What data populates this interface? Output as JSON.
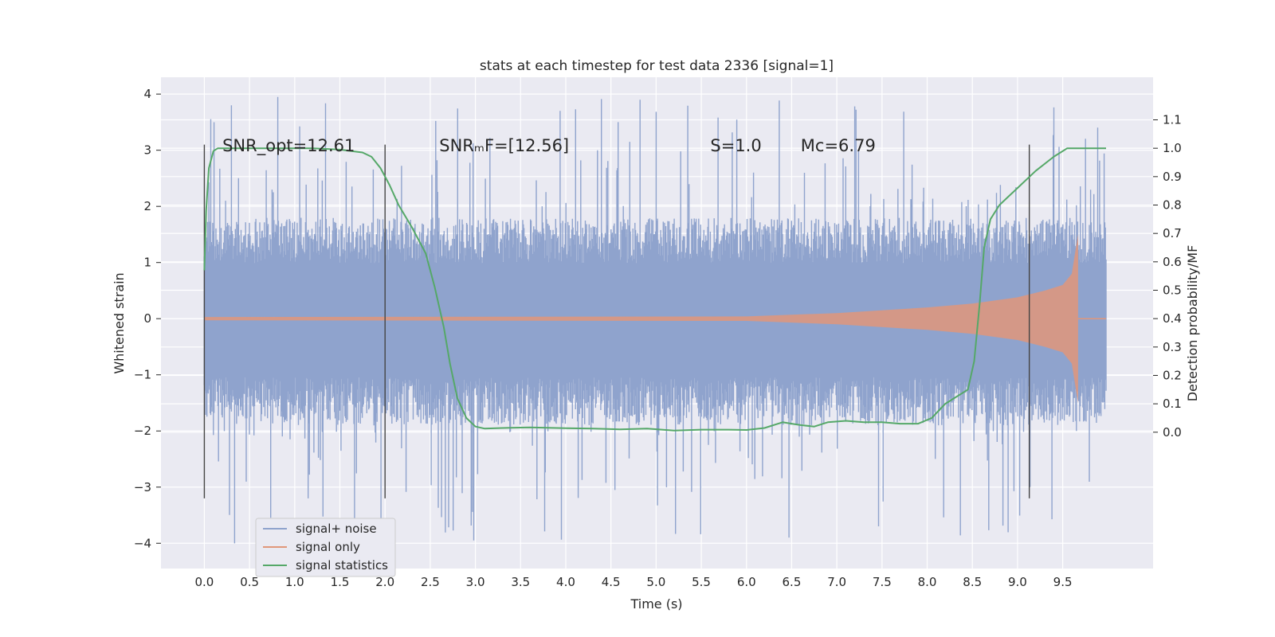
{
  "chart_data": {
    "type": "line",
    "title": "stats at each timestep for test data 2336 [signal=1]",
    "xlabel": "Time (s)",
    "ylabel": "Whitened strain",
    "ylabel_right": "Detection probability/MF",
    "xlim": [
      -0.48,
      10.5
    ],
    "ylim": [
      -4.45,
      4.3
    ],
    "ylim_right": [
      -0.48,
      1.25
    ],
    "xticks": [
      "0.0",
      "0.5",
      "1.0",
      "1.5",
      "2.0",
      "2.5",
      "3.0",
      "3.5",
      "4.0",
      "4.5",
      "5.0",
      "5.5",
      "6.0",
      "6.5",
      "7.0",
      "7.5",
      "8.0",
      "8.5",
      "9.0",
      "9.5"
    ],
    "yticks": [
      "−4",
      "−3",
      "−2",
      "−1",
      "0",
      "1",
      "2",
      "3",
      "4"
    ],
    "yticks_right": [
      "0.0",
      "0.1",
      "0.2",
      "0.3",
      "0.4",
      "0.5",
      "0.6",
      "0.7",
      "0.8",
      "0.9",
      "1.0",
      "1.1"
    ],
    "grid": true,
    "legend_position": "lower-left",
    "colors": {
      "noise": "#8fa3cd",
      "signal": "#e0977a",
      "stats": "#55a868",
      "marker": "#444444",
      "plot_bg": "#eaeaf2",
      "grid": "#ffffff"
    },
    "annotations": [
      {
        "text": "SNR_opt=12.61",
        "x": 0.2
      },
      {
        "text": "SNRₘF=[12.56]",
        "x": 2.6
      },
      {
        "text": "S=1.0",
        "x": 5.6
      },
      {
        "text": "Mc=6.79",
        "x": 6.6
      }
    ],
    "markers_x": [
      0.0,
      2.0,
      9.13
    ],
    "marker_range": [
      -3.2,
      3.1
    ],
    "noise_envelope": {
      "x": [
        0.0,
        9.98
      ],
      "typical_high": 1.8,
      "typical_low": -1.9,
      "spike_max": 3.95,
      "spike_min": -4.05
    },
    "series": [
      {
        "name": "signal+ noise",
        "note": "whitened strain noise, dense trace"
      },
      {
        "name": "signal only",
        "chirp": {
          "x": [
            0.0,
            6.0,
            7.0,
            8.0,
            8.5,
            9.0,
            9.3,
            9.5,
            9.6,
            9.65,
            9.67
          ],
          "amplitude": [
            0.03,
            0.04,
            0.1,
            0.2,
            0.27,
            0.38,
            0.5,
            0.6,
            0.8,
            1.3,
            1.5
          ],
          "merger_x": 9.67,
          "end_x": 9.98
        }
      },
      {
        "name": "signal statistics",
        "axis": "right",
        "x": [
          0.0,
          0.02,
          0.05,
          0.1,
          0.15,
          0.3,
          0.6,
          0.9,
          1.2,
          1.5,
          1.75,
          1.85,
          1.95,
          2.05,
          2.15,
          2.3,
          2.45,
          2.55,
          2.65,
          2.72,
          2.8,
          2.9,
          3.0,
          3.1,
          3.3,
          3.6,
          4.0,
          4.3,
          4.6,
          4.9,
          5.2,
          5.5,
          5.8,
          6.0,
          6.2,
          6.4,
          6.5,
          6.6,
          6.75,
          6.9,
          7.1,
          7.3,
          7.5,
          7.7,
          7.9,
          8.05,
          8.2,
          8.3,
          8.45,
          8.52,
          8.58,
          8.63,
          8.7,
          8.8,
          9.0,
          9.2,
          9.4,
          9.55,
          9.7,
          9.85,
          9.98
        ],
        "values": [
          0.57,
          0.78,
          0.93,
          0.99,
          1.0,
          1.0,
          1.0,
          1.0,
          1.0,
          0.995,
          0.985,
          0.97,
          0.93,
          0.87,
          0.8,
          0.72,
          0.63,
          0.51,
          0.37,
          0.24,
          0.12,
          0.05,
          0.02,
          0.013,
          0.015,
          0.017,
          0.014,
          0.013,
          0.01,
          0.013,
          0.006,
          0.009,
          0.009,
          0.008,
          0.015,
          0.035,
          0.03,
          0.025,
          0.02,
          0.035,
          0.04,
          0.035,
          0.035,
          0.03,
          0.03,
          0.05,
          0.1,
          0.12,
          0.15,
          0.25,
          0.45,
          0.65,
          0.75,
          0.8,
          0.86,
          0.92,
          0.97,
          1.0,
          1.0,
          1.0,
          1.0
        ]
      }
    ]
  }
}
